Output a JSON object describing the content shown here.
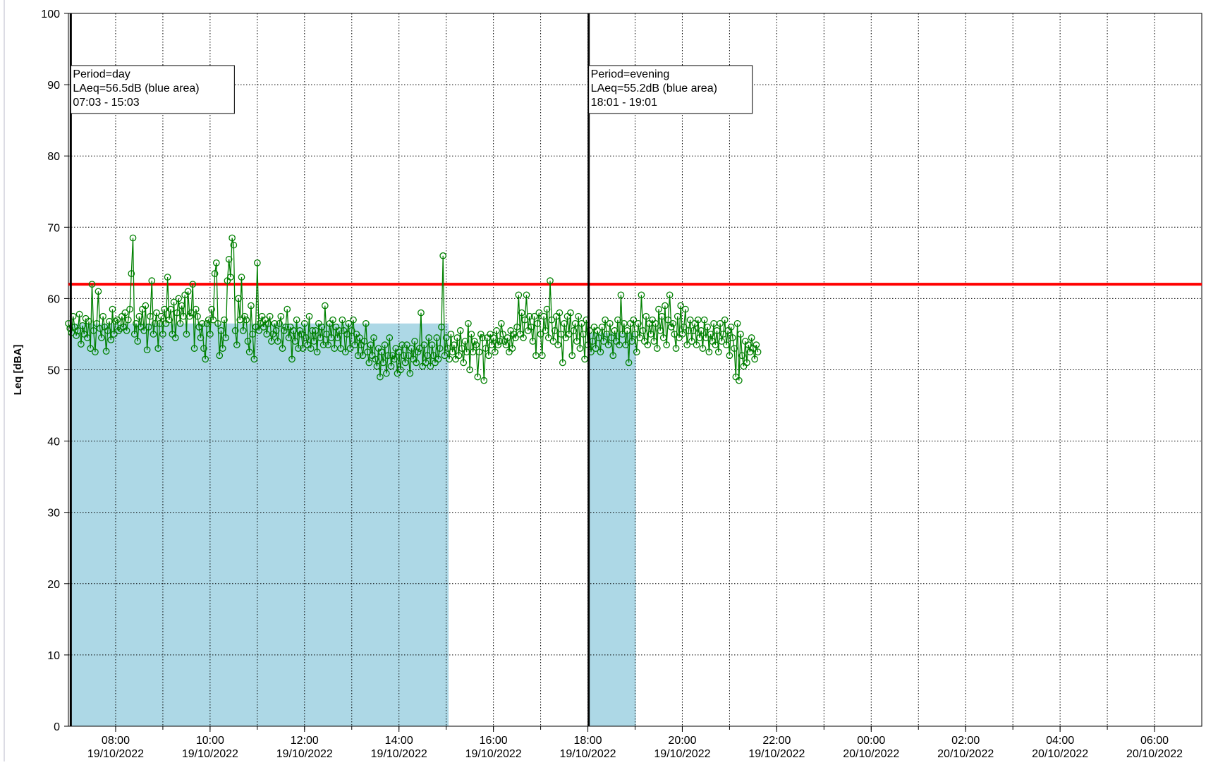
{
  "chart_data": {
    "type": "line",
    "ylabel": "Leq [dBA]",
    "ylim": [
      0,
      100
    ],
    "yticks": [
      0,
      10,
      20,
      30,
      40,
      50,
      60,
      70,
      80,
      90,
      100
    ],
    "x_start": "19/10/2022 07:00",
    "x_end": "20/10/2022 07:00",
    "x_ticks": [
      {
        "time": "08:00",
        "date": "19/10/2022",
        "hour": 8
      },
      {
        "time": "10:00",
        "date": "19/10/2022",
        "hour": 10
      },
      {
        "time": "12:00",
        "date": "19/10/2022",
        "hour": 12
      },
      {
        "time": "14:00",
        "date": "19/10/2022",
        "hour": 14
      },
      {
        "time": "16:00",
        "date": "19/10/2022",
        "hour": 16
      },
      {
        "time": "18:00",
        "date": "19/10/2022",
        "hour": 18
      },
      {
        "time": "20:00",
        "date": "19/10/2022",
        "hour": 20
      },
      {
        "time": "22:00",
        "date": "19/10/2022",
        "hour": 22
      },
      {
        "time": "00:00",
        "date": "20/10/2022",
        "hour": 24
      },
      {
        "time": "02:00",
        "date": "20/10/2022",
        "hour": 26
      },
      {
        "time": "04:00",
        "date": "20/10/2022",
        "hour": 28
      },
      {
        "time": "06:00",
        "date": "20/10/2022",
        "hour": 30
      }
    ],
    "grid": true,
    "colors": {
      "series": "#008000",
      "limit": "#ff0000",
      "area": "#add8e6",
      "marker": "#000000",
      "grid": "#000000"
    },
    "limit_line": {
      "value": 62
    },
    "period_markers": [
      {
        "hour": 7.05,
        "label_lines": [
          "Period=day",
          "LAeq=56.5dB (blue area)",
          "07:03 - 15:03"
        ]
      },
      {
        "hour": 18.017,
        "label_lines": [
          "Period=evening",
          "LAeq=55.2dB (blue area)",
          "18:01 - 19:01"
        ]
      }
    ],
    "areas": [
      {
        "start_hour": 7.05,
        "end_hour": 15.05,
        "value": 56.5
      },
      {
        "start_hour": 18.017,
        "end_hour": 19.017,
        "value": 55.2
      }
    ],
    "series": [
      {
        "x_start": "19/10/2022 07:00",
        "step_minutes": 2,
        "values": [
          56.5,
          55.8,
          55.2,
          57.5,
          56.0,
          54.8,
          55.5,
          57.8,
          53.6,
          56.2,
          55.0,
          57.2,
          54.5,
          56.8,
          53.0,
          62.0,
          55.5,
          52.5,
          56.5,
          61.0,
          55.8,
          54.5,
          57.5,
          56.0,
          52.6,
          55.5,
          56.8,
          54.2,
          58.5,
          55.0,
          56.8,
          57.0,
          55.5,
          55.8,
          57.5,
          56.0,
          58.0,
          55.5,
          57.0,
          58.5,
          63.5,
          68.5,
          55.0,
          56.5,
          54.0,
          57.5,
          56.0,
          58.5,
          55.5,
          59.0,
          52.8,
          56.0,
          57.5,
          62.5,
          55.0,
          56.5,
          58.0,
          53.0,
          56.5,
          57.5,
          55.0,
          58.5,
          56.5,
          63.0,
          57.0,
          58.5,
          55.0,
          59.5,
          54.5,
          58.0,
          60.0,
          56.5,
          59.0,
          57.5,
          60.5,
          55.0,
          61.0,
          57.5,
          58.0,
          62.0,
          53.0,
          58.5,
          57.5,
          56.0,
          54.5,
          56.5,
          53.0,
          51.5,
          56.5,
          57.0,
          55.0,
          58.5,
          57.0,
          63.5,
          65.0,
          56.5,
          52.0,
          55.5,
          53.0,
          57.0,
          54.5,
          62.5,
          65.5,
          63.0,
          68.5,
          67.5,
          55.5,
          53.5,
          60.0,
          57.0,
          63.0,
          55.5,
          57.5,
          57.0,
          54.0,
          52.5,
          59.0,
          55.0,
          51.5,
          56.0,
          65.0,
          55.5,
          56.5,
          57.5,
          56.0,
          57.0,
          55.0,
          56.5,
          57.5,
          54.0,
          55.0,
          56.5,
          55.5,
          54.0,
          56.5,
          57.5,
          53.0,
          55.5,
          56.0,
          58.5,
          54.5,
          56.0,
          51.5,
          55.5,
          54.0,
          57.0,
          53.0,
          55.5,
          55.0,
          53.0,
          56.5,
          54.5,
          53.5,
          57.5,
          53.0,
          55.5,
          54.0,
          55.5,
          52.5,
          56.5,
          54.5,
          56.0,
          53.5,
          59.0,
          55.0,
          53.5,
          56.5,
          54.5,
          57.0,
          53.0,
          56.0,
          54.5,
          55.5,
          53.0,
          57.0,
          55.5,
          52.5,
          55.0,
          56.5,
          53.0,
          55.5,
          57.0,
          53.5,
          55.0,
          52.0,
          54.5,
          53.5,
          52.0,
          54.0,
          56.5,
          52.5,
          51.0,
          53.5,
          52.0,
          54.5,
          51.5,
          50.5,
          53.0,
          49.0,
          52.5,
          51.0,
          53.5,
          49.5,
          52.0,
          54.5,
          50.5,
          52.0,
          51.5,
          53.0,
          49.5,
          52.5,
          50.0,
          53.5,
          52.0,
          51.0,
          53.5,
          52.0,
          49.5,
          53.0,
          51.5,
          54.0,
          51.0,
          52.5,
          53.0,
          58.0,
          50.5,
          53.5,
          51.0,
          52.0,
          54.5,
          50.5,
          53.5,
          52.0,
          51.0,
          54.5,
          51.5,
          53.0,
          56.0,
          66.0,
          52.0,
          54.5,
          53.0,
          51.5,
          55.0,
          52.5,
          53.5,
          51.5,
          54.5,
          52.0,
          55.5,
          53.0,
          51.0,
          54.0,
          52.5,
          56.5,
          50.0,
          55.0,
          52.5,
          54.0,
          53.5,
          49.0,
          52.5,
          55.0,
          54.5,
          48.5,
          53.0,
          54.5,
          52.0,
          55.0,
          53.5,
          54.5,
          52.5,
          55.5,
          53.5,
          54.0,
          56.5,
          55.0,
          54.0,
          53.5,
          54.5,
          52.5,
          55.5,
          53.0,
          55.0,
          54.5,
          56.0,
          60.5,
          55.0,
          58.0,
          54.5,
          57.0,
          60.5,
          55.5,
          57.5,
          56.0,
          54.0,
          57.5,
          52.0,
          56.5,
          58.0,
          55.0,
          52.0,
          57.5,
          55.5,
          58.5,
          54.5,
          62.5,
          57.0,
          54.0,
          55.5,
          57.5,
          53.5,
          58.0,
          55.0,
          51.0,
          56.5,
          54.5,
          57.5,
          55.0,
          58.0,
          52.0,
          55.5,
          56.5,
          54.0,
          57.5,
          53.0,
          56.5,
          55.0,
          51.5,
          57.0,
          53.5,
          55.5,
          52.5,
          54.0,
          56.0,
          53.0,
          55.5,
          54.5,
          52.5,
          56.0,
          54.0,
          57.0,
          55.0,
          53.5,
          56.5,
          54.5,
          52.0,
          55.5,
          54.0,
          57.0,
          53.5,
          60.5,
          55.0,
          56.5,
          53.5,
          55.5,
          51.0,
          56.5,
          54.0,
          57.0,
          55.0,
          52.5,
          56.5,
          54.5,
          60.5,
          55.5,
          54.0,
          57.5,
          53.5,
          56.5,
          55.0,
          57.0,
          54.0,
          56.5,
          53.0,
          58.5,
          55.5,
          57.5,
          54.5,
          59.0,
          53.5,
          57.0,
          60.5,
          56.0,
          56.5,
          55.0,
          53.0,
          57.5,
          54.5,
          59.0,
          55.0,
          56.0,
          58.5,
          53.5,
          55.5,
          57.0,
          54.0,
          55.5,
          56.5,
          53.5,
          57.0,
          54.5,
          55.5,
          53.0,
          57.0,
          54.5,
          56.0,
          52.5,
          55.0,
          54.0,
          56.5,
          53.5,
          55.5,
          52.5,
          56.5,
          54.0,
          55.0,
          57.0,
          53.5,
          55.5,
          52.0,
          56.0,
          54.5,
          53.0,
          49.0,
          56.5,
          48.5,
          55.0,
          52.0,
          50.5,
          54.0,
          51.0,
          53.5,
          52.5,
          54.5,
          53.0,
          51.5,
          53.5,
          52.5
        ]
      }
    ]
  }
}
